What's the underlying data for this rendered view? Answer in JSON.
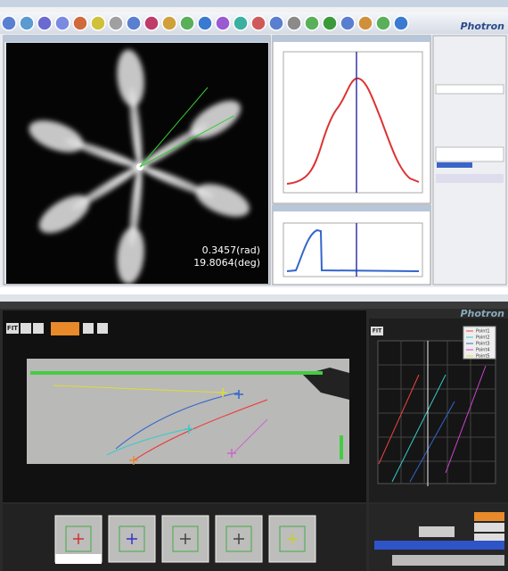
{
  "top_window": {
    "brand": "Photron",
    "angle_rad": "0.3457(rad)",
    "angle_deg": "19.8064(deg)"
  },
  "bottom_window": {
    "brand": "Photron",
    "fit_left": "FIT",
    "fit_right": "FIT",
    "legend": [
      "Point1",
      "Point2",
      "Point3",
      "Point4",
      "Point5"
    ]
  }
}
